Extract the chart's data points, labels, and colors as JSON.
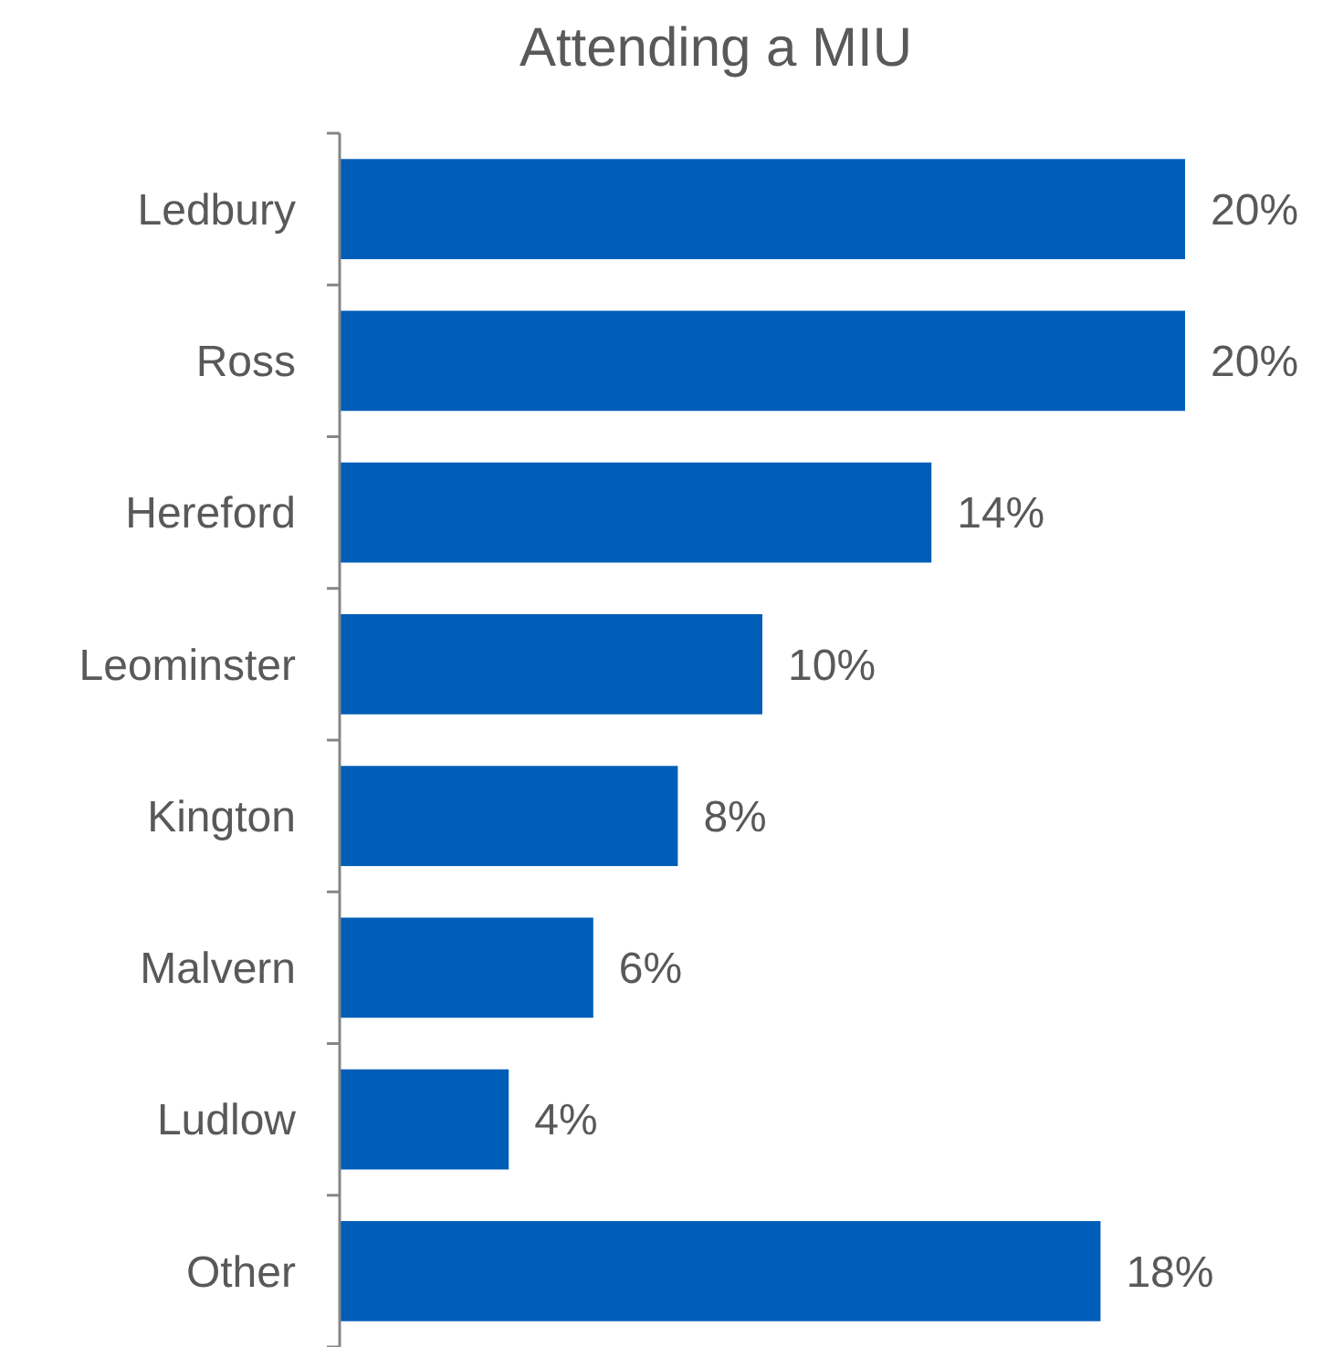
{
  "chart_data": {
    "type": "bar",
    "orientation": "horizontal",
    "title": "Attending a MIU",
    "categories": [
      "Ledbury",
      "Ross",
      "Hereford",
      "Leominster",
      "Kington",
      "Malvern",
      "Ludlow",
      "Other"
    ],
    "values": [
      20,
      20,
      14,
      10,
      8,
      6,
      4,
      18
    ],
    "value_labels": [
      "20%",
      "20%",
      "14%",
      "10%",
      "8%",
      "6%",
      "4%",
      "18%"
    ],
    "color": "#005eb8"
  }
}
